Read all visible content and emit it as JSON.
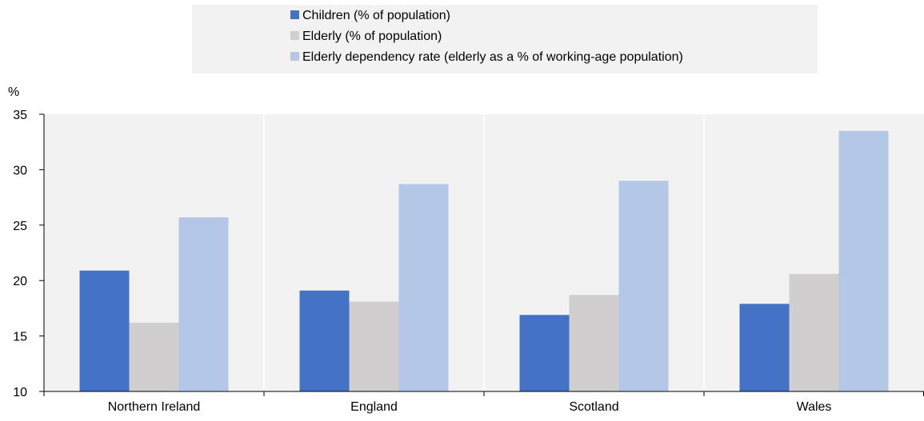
{
  "chart_data": {
    "type": "bar",
    "title": "",
    "xlabel": "",
    "ylabel": "%",
    "ylim": [
      10,
      35
    ],
    "yticks": [
      10,
      15,
      20,
      25,
      30,
      35
    ],
    "grid": "vertical lines between categories",
    "legend_position": "top-center",
    "categories": [
      "Northern Ireland",
      "England",
      "Scotland",
      "Wales"
    ],
    "series": [
      {
        "name": "Children (% of population)",
        "color": "#4472c4",
        "values": [
          20.9,
          19.1,
          16.9,
          17.9
        ]
      },
      {
        "name": "Elderly (% of population)",
        "color": "#d0cece",
        "values": [
          16.2,
          18.1,
          18.7,
          20.6
        ]
      },
      {
        "name": "Elderly dependency rate (elderly as a % of working-age population)",
        "color": "#b4c7e7",
        "values": [
          25.7,
          28.7,
          29.0,
          33.5
        ]
      }
    ]
  }
}
